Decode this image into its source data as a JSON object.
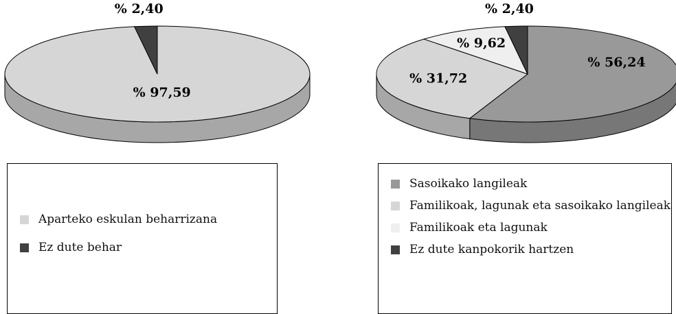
{
  "chart_data": [
    {
      "type": "pie",
      "categories": [
        "Aparteko eskulan beharrizana",
        "Ez dute behar"
      ],
      "values": [
        97.59,
        2.4
      ],
      "value_labels": [
        "% 97,59",
        "% 2,40"
      ],
      "colors": [
        "#d6d6d6",
        "#404040"
      ]
    },
    {
      "type": "pie",
      "categories": [
        "Sasoikako langileak",
        "Familikoak, lagunak eta sasoikako langileak",
        "Familikoak eta lagunak",
        "Ez dute kanpokorik hartzen"
      ],
      "values": [
        56.24,
        31.72,
        9.62,
        2.4
      ],
      "value_labels": [
        "% 56,24",
        "% 31,72",
        "% 9,62",
        "% 2,40"
      ],
      "colors": [
        "#999999",
        "#d6d6d6",
        "#efefef",
        "#404040"
      ]
    }
  ]
}
